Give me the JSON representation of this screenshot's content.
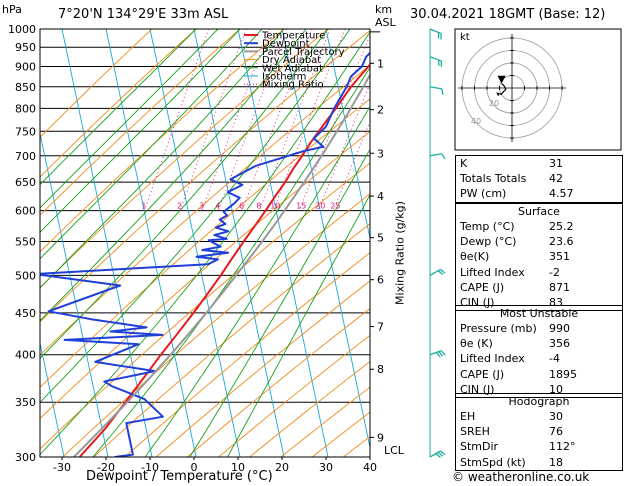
{
  "header": {
    "location": "7°20'N 134°29'E 33m ASL",
    "datetime": "30.04.2021 18GMT (Base: 12)",
    "pressure_unit": "hPa",
    "height_unit": "km",
    "height_ref": "ASL"
  },
  "chart_data": {
    "type": "line",
    "title": "",
    "xlabel": "Dewpoint / Temperature (°C)",
    "ylabel": "hPa",
    "right_label": "Mixing Ratio (g/kg)",
    "xlim": [
      -35,
      40
    ],
    "ylim": [
      1000,
      300
    ],
    "y_scale": "log",
    "x_ticks": [
      -30,
      -20,
      -10,
      0,
      10,
      20,
      30,
      40
    ],
    "pressure_ticks": [
      300,
      350,
      400,
      450,
      500,
      550,
      600,
      650,
      700,
      750,
      800,
      850,
      900,
      950,
      1000
    ],
    "km_ticks": [
      {
        "label": "1",
        "p": 908
      },
      {
        "label": "2",
        "p": 797
      },
      {
        "label": "3",
        "p": 705
      },
      {
        "label": "4",
        "p": 625
      },
      {
        "label": "5",
        "p": 556
      },
      {
        "label": "6",
        "p": 494
      },
      {
        "label": "7",
        "p": 433
      },
      {
        "label": "8",
        "p": 384
      },
      {
        "label": "9",
        "p": 317
      }
    ],
    "lcl": {
      "label": "LCL",
      "p": 992
    },
    "mixing_ratio_labels": [
      "1",
      "2",
      "3",
      "4",
      "6",
      "8",
      "10",
      "15",
      "20",
      "25"
    ],
    "legend": [
      "Temperature",
      "Dewpoint",
      "Parcel Trajectory",
      "Dry Adiabat",
      "Wet Adiabat",
      "Isotherm",
      "Mixing Ratio"
    ],
    "legend_placement": "top-center",
    "colors": {
      "temperature": "#e41a1c",
      "dewpoint": "#1f3fd8",
      "parcel": "#999999",
      "dry_adiabat": "#f08c1a",
      "wet_adiabat": "#1aa01a",
      "isotherm": "#1aa8d8",
      "mixing_ratio": "#e0147a",
      "wind": "#1ab0a0"
    },
    "series": [
      {
        "name": "Temperature",
        "points": [
          [
            25.2,
            1000
          ],
          [
            24.2,
            975
          ],
          [
            23.5,
            950
          ],
          [
            22.2,
            925
          ],
          [
            21.0,
            900
          ],
          [
            19.5,
            875
          ],
          [
            18.0,
            850
          ],
          [
            16.8,
            825
          ],
          [
            15.6,
            800
          ],
          [
            14.2,
            775
          ],
          [
            12.8,
            750
          ],
          [
            11.4,
            725
          ],
          [
            10.2,
            700
          ],
          [
            8.8,
            675
          ],
          [
            7.6,
            650
          ],
          [
            6.0,
            625
          ],
          [
            4.5,
            600
          ],
          [
            2.8,
            575
          ],
          [
            1.0,
            550
          ],
          [
            -0.8,
            525
          ],
          [
            -2.6,
            500
          ],
          [
            -4.7,
            475
          ],
          [
            -7.0,
            450
          ],
          [
            -9.6,
            425
          ],
          [
            -12.4,
            400
          ],
          [
            -15.2,
            375
          ],
          [
            -18.2,
            350
          ],
          [
            -21.5,
            325
          ],
          [
            -26.0,
            300
          ]
        ]
      },
      {
        "name": "Dewpoint",
        "points": [
          [
            23.6,
            1000
          ],
          [
            22.2,
            975
          ],
          [
            21.8,
            950
          ],
          [
            20.0,
            925
          ],
          [
            19.5,
            900
          ],
          [
            17.5,
            875
          ],
          [
            17.0,
            850
          ],
          [
            15.2,
            800
          ],
          [
            14.2,
            760
          ],
          [
            12.0,
            735
          ],
          [
            14.6,
            718
          ],
          [
            10.5,
            710
          ],
          [
            0.0,
            680
          ],
          [
            -5.0,
            655
          ],
          [
            -2.0,
            645
          ],
          [
            -5.0,
            632
          ],
          [
            -2.0,
            622
          ],
          [
            -3.0,
            612
          ],
          [
            -5.0,
            598
          ],
          [
            -4.0,
            592
          ],
          [
            -5.5,
            585
          ],
          [
            -4.0,
            578
          ],
          [
            -6.0,
            572
          ],
          [
            -3.0,
            566
          ],
          [
            -6.0,
            560
          ],
          [
            -3.0,
            554
          ],
          [
            -7.0,
            552
          ],
          [
            -4.0,
            542
          ],
          [
            -8.0,
            537
          ],
          [
            -2.0,
            533
          ],
          [
            -9.0,
            527
          ],
          [
            -4.0,
            523
          ],
          [
            -6.0,
            516
          ],
          [
            -45.0,
            502
          ],
          [
            -25.0,
            486
          ],
          [
            -40.0,
            452
          ],
          [
            -30.0,
            442
          ],
          [
            -17.0,
            432
          ],
          [
            -25.0,
            427
          ],
          [
            -13.0,
            423
          ],
          [
            -35.0,
            417
          ],
          [
            -18.0,
            412
          ],
          [
            -27.0,
            392
          ],
          [
            -13.0,
            382
          ],
          [
            -24.0,
            371
          ],
          [
            -22.0,
            366
          ],
          [
            -14.0,
            353
          ],
          [
            -9.0,
            336
          ],
          [
            -17.0,
            330
          ],
          [
            -14.0,
            302
          ],
          [
            -18.0,
            300
          ]
        ]
      },
      {
        "name": "Parcel Trajectory",
        "points": [
          [
            25.2,
            1000
          ],
          [
            24.5,
            975
          ],
          [
            23.8,
            950
          ],
          [
            23.1,
            925
          ],
          [
            22.4,
            900
          ],
          [
            21.6,
            875
          ],
          [
            20.8,
            850
          ],
          [
            19.9,
            825
          ],
          [
            19.0,
            800
          ],
          [
            18.0,
            775
          ],
          [
            16.9,
            750
          ],
          [
            15.8,
            725
          ],
          [
            14.6,
            700
          ],
          [
            13.3,
            675
          ],
          [
            11.9,
            650
          ],
          [
            10.4,
            625
          ],
          [
            8.8,
            600
          ],
          [
            7.1,
            575
          ],
          [
            5.2,
            550
          ],
          [
            3.1,
            525
          ],
          [
            0.9,
            500
          ],
          [
            -1.5,
            475
          ],
          [
            -4.1,
            450
          ],
          [
            -7.0,
            425
          ],
          [
            -10.2,
            400
          ],
          [
            -13.8,
            375
          ],
          [
            -17.8,
            350
          ],
          [
            -22.3,
            325
          ],
          [
            -27.3,
            300
          ]
        ]
      }
    ],
    "wind_barbs": [
      {
        "p": 1000,
        "dir": 112,
        "kt": 18
      },
      {
        "p": 925,
        "dir": 110,
        "kt": 15
      },
      {
        "p": 850,
        "dir": 100,
        "kt": 12
      },
      {
        "p": 700,
        "dir": 80,
        "kt": 10
      },
      {
        "p": 500,
        "dir": 60,
        "kt": 20
      },
      {
        "p": 400,
        "dir": 70,
        "kt": 25
      },
      {
        "p": 300,
        "dir": 60,
        "kt": 25
      }
    ],
    "hodograph": {
      "unit": "kt",
      "rings": [
        10,
        20,
        30,
        40
      ],
      "ring_labels": [
        "20",
        "40"
      ]
    }
  },
  "indices": {
    "top": [
      {
        "k": "K",
        "v": "31"
      },
      {
        "k": "Totals Totals",
        "v": "42"
      },
      {
        "k": "PW (cm)",
        "v": "4.57"
      }
    ],
    "surface": {
      "title": "Surface",
      "rows": [
        {
          "k": "Temp (°C)",
          "v": "25.2"
        },
        {
          "k": "Dewp (°C)",
          "v": "23.6"
        },
        {
          "k": "θe(K)",
          "v": "351"
        },
        {
          "k": "Lifted Index",
          "v": "-2"
        },
        {
          "k": "CAPE (J)",
          "v": "871"
        },
        {
          "k": "CIN (J)",
          "v": "83"
        }
      ]
    },
    "most_unstable": {
      "title": "Most Unstable",
      "rows": [
        {
          "k": "Pressure (mb)",
          "v": "990"
        },
        {
          "k": "θe (K)",
          "v": "356"
        },
        {
          "k": "Lifted Index",
          "v": "-4"
        },
        {
          "k": "CAPE (J)",
          "v": "1895"
        },
        {
          "k": "CIN (J)",
          "v": "10"
        }
      ]
    },
    "hodograph": {
      "title": "Hodograph",
      "rows": [
        {
          "k": "EH",
          "v": "30"
        },
        {
          "k": "SREH",
          "v": "76"
        },
        {
          "k": "StmDir",
          "v": "112°"
        },
        {
          "k": "StmSpd (kt)",
          "v": "18"
        }
      ]
    }
  },
  "footer": {
    "credit": "© weatheronline.co.uk"
  }
}
